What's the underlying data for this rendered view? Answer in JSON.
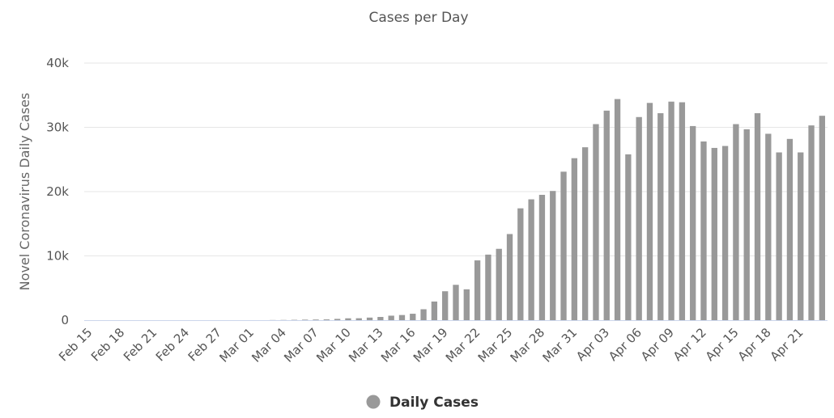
{
  "chart_data": {
    "type": "bar",
    "title": "Cases per Day",
    "xlabel": "",
    "ylabel": "Novel Coronavirus Daily Cases",
    "series_name": "Daily Cases",
    "color": "#999999",
    "ylim": [
      0,
      40000
    ],
    "yticks": [
      0,
      10000,
      20000,
      30000,
      40000
    ],
    "ytick_labels": [
      "0",
      "10k",
      "20k",
      "30k",
      "40k"
    ],
    "grid": true,
    "legend": "bottom-center",
    "xtick_labels": [
      "Feb 15",
      "Feb 18",
      "Feb 21",
      "Feb 24",
      "Feb 27",
      "Mar 01",
      "Mar 04",
      "Mar 07",
      "Mar 10",
      "Mar 13",
      "Mar 16",
      "Mar 19",
      "Mar 22",
      "Mar 25",
      "Mar 28",
      "Mar 31",
      "Apr 03",
      "Apr 06",
      "Apr 09",
      "Apr 12",
      "Apr 15",
      "Apr 18",
      "Apr 21"
    ],
    "categories": [
      "Feb 15",
      "Feb 16",
      "Feb 17",
      "Feb 18",
      "Feb 19",
      "Feb 20",
      "Feb 21",
      "Feb 22",
      "Feb 23",
      "Feb 24",
      "Feb 25",
      "Feb 26",
      "Feb 27",
      "Feb 28",
      "Feb 29",
      "Mar 01",
      "Mar 02",
      "Mar 03",
      "Mar 04",
      "Mar 05",
      "Mar 06",
      "Mar 07",
      "Mar 08",
      "Mar 09",
      "Mar 10",
      "Mar 11",
      "Mar 12",
      "Mar 13",
      "Mar 14",
      "Mar 15",
      "Mar 16",
      "Mar 17",
      "Mar 18",
      "Mar 19",
      "Mar 20",
      "Mar 21",
      "Mar 22",
      "Mar 23",
      "Mar 24",
      "Mar 25",
      "Mar 26",
      "Mar 27",
      "Mar 28",
      "Mar 29",
      "Mar 30",
      "Mar 31",
      "Apr 01",
      "Apr 02",
      "Apr 03",
      "Apr 04",
      "Apr 05",
      "Apr 06",
      "Apr 07",
      "Apr 08",
      "Apr 09",
      "Apr 10",
      "Apr 11",
      "Apr 12",
      "Apr 13",
      "Apr 14",
      "Apr 15",
      "Apr 16",
      "Apr 17",
      "Apr 18",
      "Apr 19",
      "Apr 20",
      "Apr 21",
      "Apr 22",
      "Apr 23"
    ],
    "values": [
      0,
      0,
      0,
      0,
      0,
      0,
      0,
      0,
      0,
      0,
      0,
      0,
      0,
      0,
      0,
      0,
      0,
      20,
      30,
      50,
      80,
      100,
      120,
      200,
      290,
      300,
      400,
      500,
      700,
      800,
      1000,
      1700,
      2900,
      4500,
      5500,
      4800,
      9300,
      10200,
      11100,
      13400,
      17400,
      18800,
      19500,
      20100,
      23100,
      25200,
      26900,
      30500,
      32600,
      34400,
      25800,
      31600,
      33800,
      32200,
      34000,
      33900,
      30200,
      27800,
      26800,
      27100,
      30500,
      29700,
      32200,
      29000,
      26100,
      28200,
      26100,
      30300,
      31800
    ]
  }
}
